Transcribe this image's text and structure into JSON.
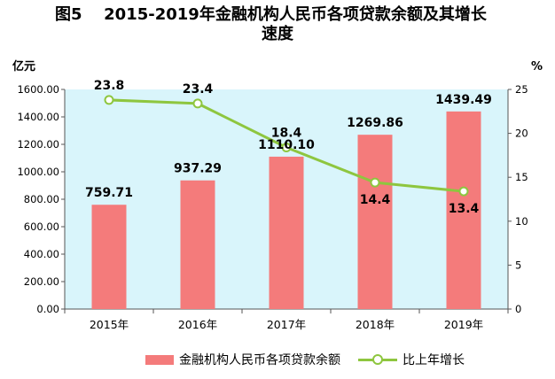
{
  "figure": {
    "number": "图5",
    "title_line1": "2015-2019年金融机构人民币各项贷款余额及其增长",
    "title_line2": "速度"
  },
  "chart_data": {
    "type": "bar",
    "categories": [
      "2015年",
      "2016年",
      "2017年",
      "2018年",
      "2019年"
    ],
    "series": [
      {
        "name": "金融机构人民币各项贷款余额",
        "type": "bar",
        "axis": "left",
        "values": [
          759.71,
          937.29,
          1110.1,
          1269.86,
          1439.49
        ],
        "labels": [
          "759.71",
          "937.29",
          "1110.10",
          "1269.86",
          "1439.49"
        ],
        "color": "#f47b7b"
      },
      {
        "name": "比上年增长",
        "type": "line",
        "axis": "right",
        "values": [
          23.8,
          23.4,
          18.4,
          14.4,
          13.4
        ],
        "labels": [
          "23.8",
          "23.4",
          "18.4",
          "14.4",
          "13.4"
        ],
        "color": "#8ec63f"
      }
    ],
    "left_axis": {
      "unit": "亿元",
      "range": [
        0,
        1600
      ],
      "ticks": [
        "0.00",
        "200.00",
        "400.00",
        "600.00",
        "800.00",
        "1000.00",
        "1200.00",
        "1400.00",
        "1600.00"
      ]
    },
    "right_axis": {
      "unit": "%",
      "range": [
        0,
        25
      ],
      "ticks": [
        "0",
        "5",
        "10",
        "15",
        "20",
        "25"
      ]
    },
    "plot_background": "#d9f5fb",
    "grid": false,
    "legend_position": "bottom"
  }
}
